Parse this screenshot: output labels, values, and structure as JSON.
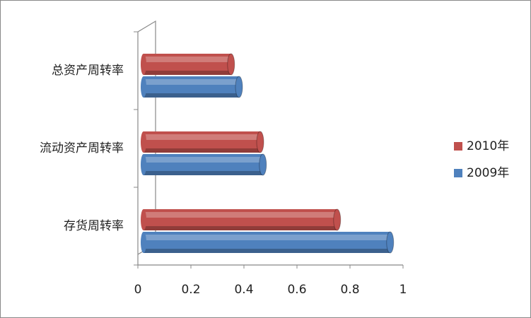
{
  "chart_data": {
    "type": "bar",
    "orientation": "horizontal",
    "categories": [
      "存货周转率",
      "流动资产周转率",
      "总资产周转率"
    ],
    "series": [
      {
        "name": "2010年",
        "color": "#c0504d",
        "values": [
          0.73,
          0.44,
          0.33
        ]
      },
      {
        "name": "2009年",
        "color": "#4f81bd",
        "values": [
          0.93,
          0.45,
          0.36
        ]
      }
    ],
    "xlim": [
      0,
      1
    ],
    "xticks": [
      0,
      0.2,
      0.4,
      0.6,
      0.8,
      1
    ],
    "legend": "right"
  }
}
